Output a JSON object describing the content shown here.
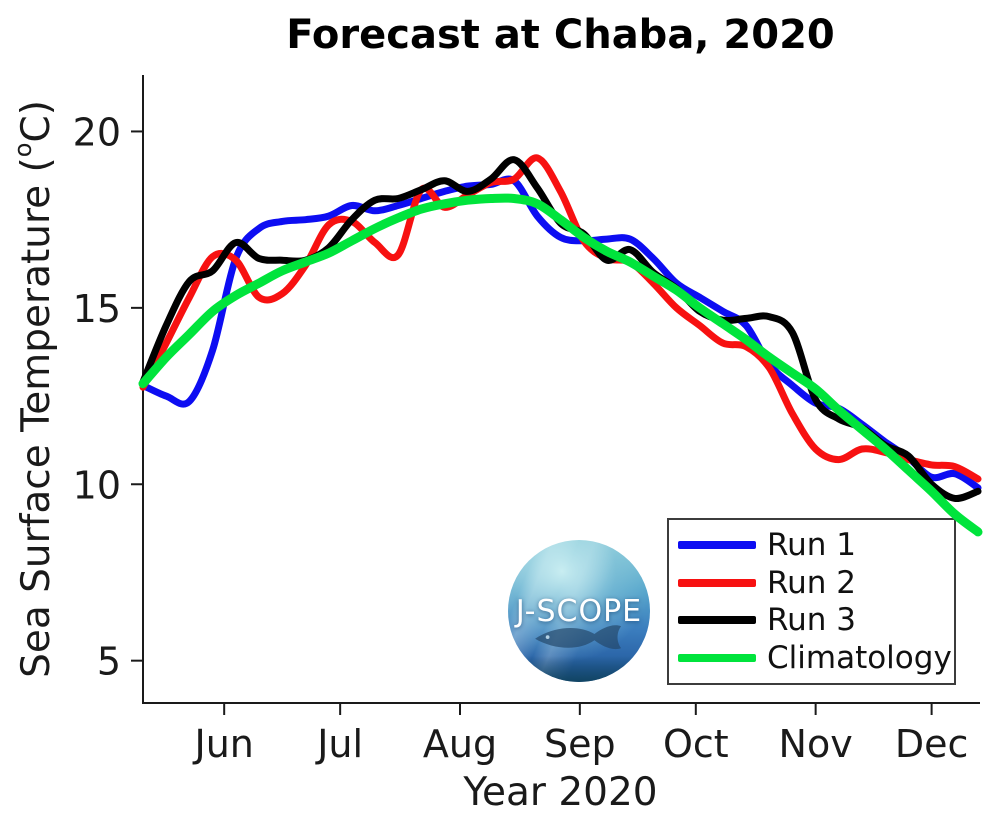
{
  "figure": {
    "background": "#ffffff",
    "text_color": "#1a1a1a",
    "title_color": "#000000"
  },
  "labels": {
    "title": "Forecast at Chaba, 2020",
    "xlabel": "Year 2020",
    "ylabel_prefix": "Sea Surface Temperature (",
    "ylabel_degree": "o",
    "ylabel_suffix": "C)"
  },
  "logo": {
    "name": "J-SCOPE circular ocean logo",
    "text": "J-SCOPE"
  },
  "chart_data": {
    "type": "line",
    "title": "Forecast at Chaba, 2020",
    "xlabel": "Year 2020",
    "ylabel": "Sea Surface Temperature (°C)",
    "grid": false,
    "legend_position": "inside lower right",
    "x_axis": {
      "unit": "day_of_year_2020",
      "lim": [
        132,
        348
      ],
      "ticks": [
        {
          "doy": 153,
          "label": "Jun"
        },
        {
          "doy": 183,
          "label": "Jul"
        },
        {
          "doy": 214,
          "label": "Aug"
        },
        {
          "doy": 245,
          "label": "Sep"
        },
        {
          "doy": 275,
          "label": "Oct"
        },
        {
          "doy": 306,
          "label": "Nov"
        },
        {
          "doy": 336,
          "label": "Dec"
        }
      ]
    },
    "y_axis": {
      "lim": [
        3.8,
        21.6
      ],
      "ticks": [
        5,
        10,
        15,
        20
      ]
    },
    "x_dates": [
      "May 11",
      "May 17",
      "May 23",
      "May 29",
      "Jun 4",
      "Jun 10",
      "Jun 16",
      "Jun 22",
      "Jun 28",
      "Jul 4",
      "Jul 10",
      "Jul 16",
      "Jul 22",
      "Jul 28",
      "Aug 3",
      "Aug 9",
      "Aug 15",
      "Aug 21",
      "Aug 27",
      "Sep 2",
      "Sep 8",
      "Sep 14",
      "Sep 20",
      "Sep 26",
      "Oct 2",
      "Oct 8",
      "Oct 14",
      "Oct 20",
      "Oct 26",
      "Nov 1",
      "Nov 7",
      "Nov 13",
      "Nov 19",
      "Nov 25",
      "Dec 1",
      "Dec 7",
      "Dec 13"
    ],
    "x_doy": [
      132,
      138,
      144,
      150,
      156,
      162,
      168,
      174,
      180,
      186,
      192,
      198,
      204,
      210,
      216,
      222,
      228,
      234,
      240,
      246,
      252,
      258,
      264,
      270,
      276,
      282,
      288,
      294,
      300,
      306,
      312,
      318,
      324,
      330,
      336,
      342,
      348
    ],
    "series": [
      {
        "name": "Run 1",
        "color": "#0d0df2",
        "width": 7,
        "values": [
          12.8,
          12.5,
          12.35,
          13.8,
          16.4,
          17.25,
          17.45,
          17.5,
          17.6,
          17.9,
          17.75,
          17.9,
          18.1,
          18.3,
          18.45,
          18.5,
          18.6,
          17.6,
          17.0,
          16.9,
          16.95,
          16.95,
          16.4,
          15.7,
          15.3,
          14.9,
          14.5,
          13.4,
          12.8,
          12.3,
          12.15,
          11.7,
          11.2,
          10.75,
          10.2,
          10.3,
          9.9
        ]
      },
      {
        "name": "Run 2",
        "color": "#f71111",
        "width": 7,
        "values": [
          12.75,
          14.0,
          15.3,
          16.45,
          16.35,
          15.3,
          15.4,
          16.2,
          17.35,
          17.45,
          16.85,
          16.5,
          18.35,
          17.85,
          18.2,
          18.55,
          18.65,
          19.25,
          18.3,
          16.9,
          16.4,
          16.3,
          15.7,
          15.0,
          14.5,
          14.0,
          13.9,
          13.3,
          12.0,
          11.0,
          10.7,
          11.0,
          10.9,
          10.7,
          10.55,
          10.5,
          10.15
        ]
      },
      {
        "name": "Run 3",
        "color": "#000000",
        "width": 7,
        "values": [
          12.9,
          14.5,
          15.75,
          16.05,
          16.85,
          16.4,
          16.35,
          16.35,
          16.7,
          17.5,
          18.05,
          18.1,
          18.35,
          18.6,
          18.3,
          18.65,
          19.2,
          18.4,
          17.4,
          17.1,
          16.35,
          16.65,
          16.0,
          15.55,
          14.9,
          14.65,
          14.7,
          14.75,
          14.3,
          12.4,
          11.85,
          11.6,
          11.1,
          10.8,
          10.0,
          9.6,
          9.8
        ]
      },
      {
        "name": "Climatology",
        "color": "#00e43c",
        "width": 9,
        "values": [
          12.85,
          13.6,
          14.25,
          14.9,
          15.35,
          15.7,
          16.05,
          16.3,
          16.55,
          16.9,
          17.25,
          17.55,
          17.8,
          17.95,
          18.05,
          18.1,
          18.1,
          17.95,
          17.5,
          17.0,
          16.6,
          16.3,
          15.9,
          15.5,
          15.0,
          14.55,
          14.1,
          13.6,
          13.15,
          12.7,
          12.1,
          11.55,
          11.0,
          10.4,
          9.8,
          9.15,
          8.65
        ]
      }
    ]
  }
}
